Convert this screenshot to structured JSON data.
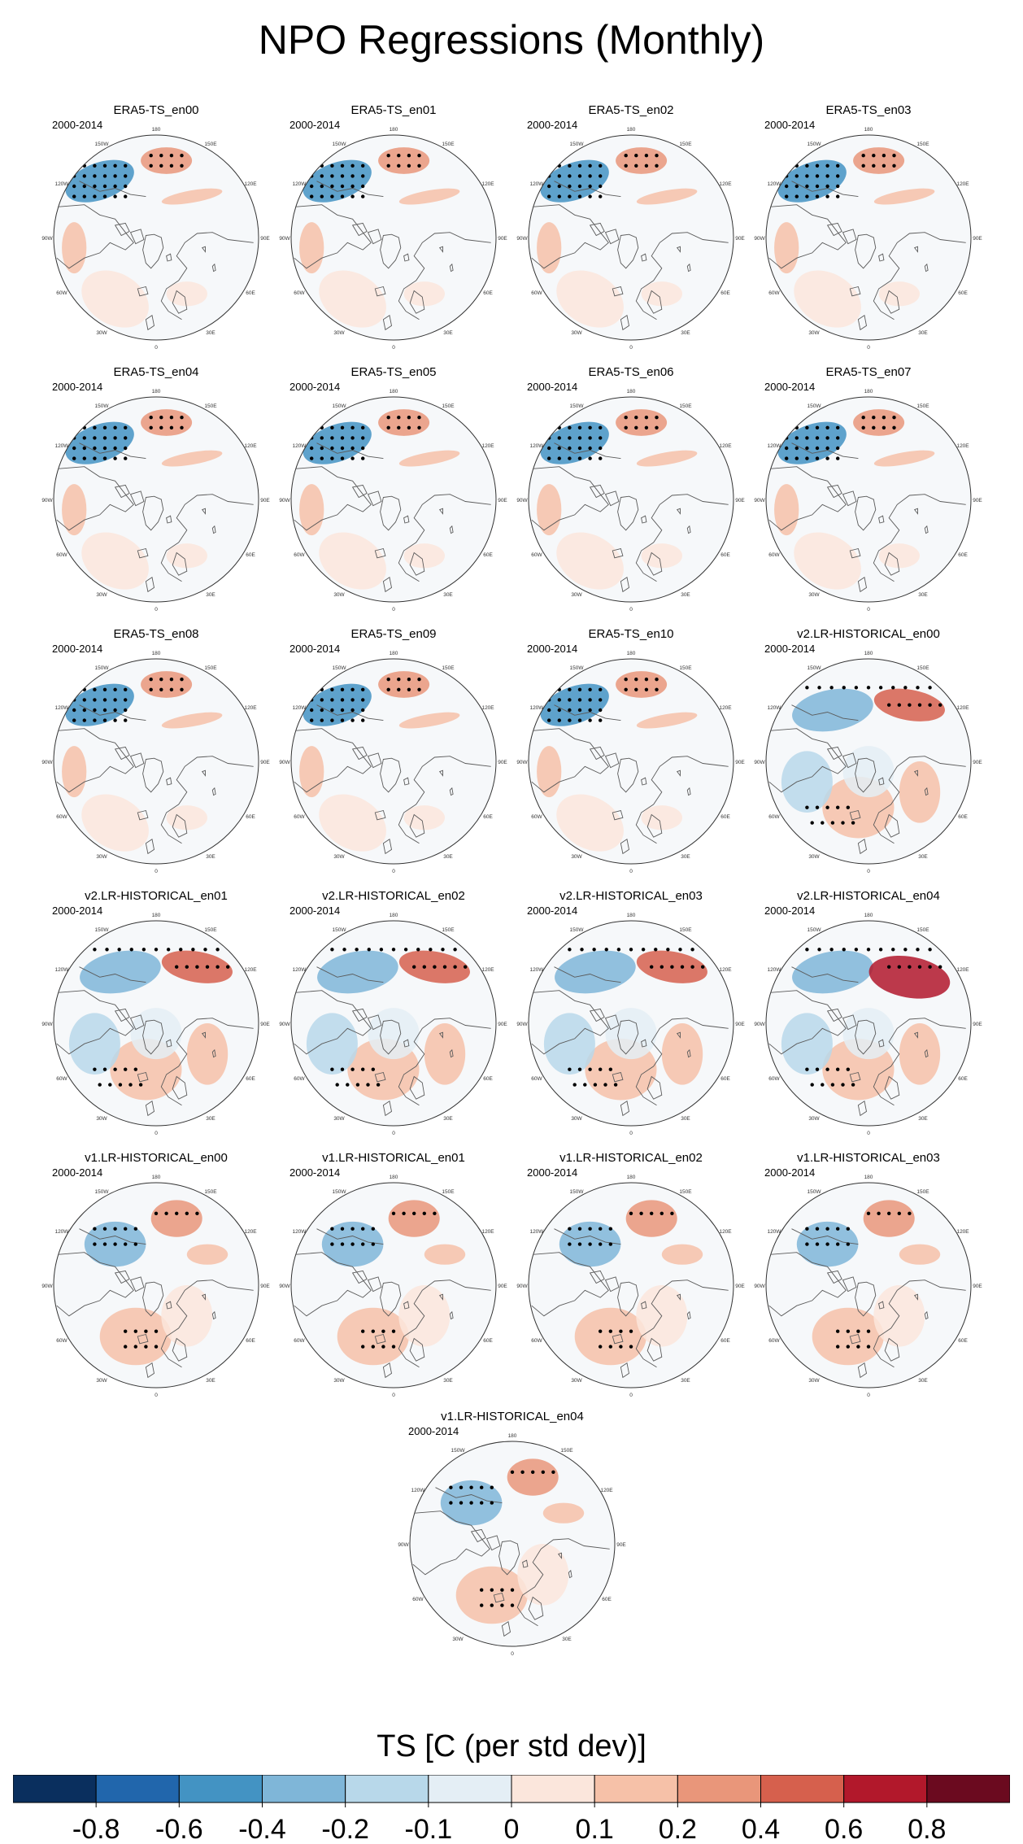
{
  "title": "NPO Regressions (Monthly)",
  "chart_data": {
    "type": "heatmap",
    "projection": "polar stereographic (Northern Hemisphere)",
    "period_label": "2000-2014",
    "lon_labels": [
      "180",
      "150E",
      "120E",
      "90E",
      "60E",
      "30E",
      "0",
      "30W",
      "60W",
      "90W",
      "120W",
      "150W"
    ],
    "panels": [
      {
        "title": "ERA5-TS_en00",
        "period": "2000-2014"
      },
      {
        "title": "ERA5-TS_en01",
        "period": "2000-2014"
      },
      {
        "title": "ERA5-TS_en02",
        "period": "2000-2014"
      },
      {
        "title": "ERA5-TS_en03",
        "period": "2000-2014"
      },
      {
        "title": "ERA5-TS_en04",
        "period": "2000-2014"
      },
      {
        "title": "ERA5-TS_en05",
        "period": "2000-2014"
      },
      {
        "title": "ERA5-TS_en06",
        "period": "2000-2014"
      },
      {
        "title": "ERA5-TS_en07",
        "period": "2000-2014"
      },
      {
        "title": "ERA5-TS_en08",
        "period": "2000-2014"
      },
      {
        "title": "ERA5-TS_en09",
        "period": "2000-2014"
      },
      {
        "title": "ERA5-TS_en10",
        "period": "2000-2014"
      },
      {
        "title": "v2.LR-HISTORICAL_en00",
        "period": "2000-2014"
      },
      {
        "title": "v2.LR-HISTORICAL_en01",
        "period": "2000-2014"
      },
      {
        "title": "v2.LR-HISTORICAL_en02",
        "period": "2000-2014"
      },
      {
        "title": "v2.LR-HISTORICAL_en03",
        "period": "2000-2014"
      },
      {
        "title": "v2.LR-HISTORICAL_en04",
        "period": "2000-2014"
      },
      {
        "title": "v1.LR-HISTORICAL_en00",
        "period": "2000-2014"
      },
      {
        "title": "v1.LR-HISTORICAL_en01",
        "period": "2000-2014"
      },
      {
        "title": "v1.LR-HISTORICAL_en02",
        "period": "2000-2014"
      },
      {
        "title": "v1.LR-HISTORICAL_en03",
        "period": "2000-2014"
      },
      {
        "title": "v1.LR-HISTORICAL_en04",
        "period": "2000-2014"
      }
    ],
    "colorbar": {
      "label": "TS [C (per std dev)]",
      "ticks": [
        "-0.8",
        "-0.6",
        "-0.4",
        "-0.2",
        "-0.1",
        "0",
        "0.1",
        "0.2",
        "0.4",
        "0.6",
        "0.8"
      ],
      "colors": [
        "#0a2f5e",
        "#2166ac",
        "#4393c3",
        "#7fb6d8",
        "#b8d8ea",
        "#e4eef5",
        "#fbe6dc",
        "#f6c1a8",
        "#e9967a",
        "#d6604d",
        "#b2182b",
        "#6b0a1f"
      ]
    },
    "stippling": "significant regression"
  }
}
